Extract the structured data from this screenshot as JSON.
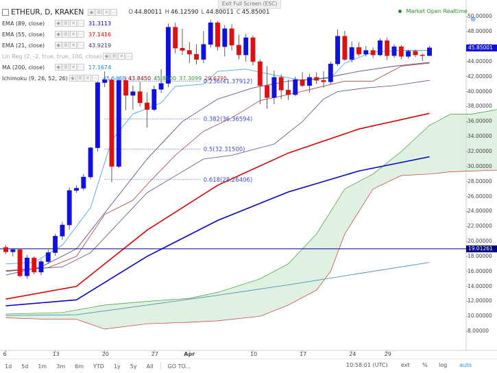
{
  "fullscreen": {
    "exit_label": "Exit Full Screen (ESC)"
  },
  "header": {
    "symbol": "ETHEUR, D, KRAKEN",
    "ohlc_labels": [
      "O",
      "H",
      "L",
      "C"
    ],
    "ohlc_values": [
      "44.80011",
      "46.12590",
      "44.80011",
      "45.85001"
    ],
    "market_status": "Market Open",
    "realtime": "Realtime"
  },
  "indicators": [
    {
      "name": "EMA (89, close)",
      "values": [
        "31.3113"
      ],
      "colors": [
        "#0000cc"
      ]
    },
    {
      "name": "EMA (55, close)",
      "values": [
        "37.1416"
      ],
      "colors": [
        "#dd0000"
      ]
    },
    {
      "name": "EMA (21, close)",
      "values": [
        "43.9219"
      ],
      "colors": [
        "#333366"
      ]
    },
    {
      "name": "Lin Reg (2, -2, true, true, 100, close)",
      "values": [],
      "colors": []
    },
    {
      "name": "MA (200, close)",
      "values": [
        "17.1674"
      ],
      "colors": [
        "#1e8ab4"
      ]
    },
    {
      "name": "Ichimoku (9, 26, 52, 26)",
      "values": [
        "45.5448",
        "43.8450",
        "45.8500",
        "37.3099",
        "29.6795"
      ],
      "colors": [
        "#1e90ff",
        "#8b0000",
        "#228b22",
        "#3a9a3a",
        "#cc3333"
      ]
    }
  ],
  "legend_buttons": [
    "eye",
    "gear",
    "close",
    "more"
  ],
  "timeframes": [
    "1d",
    "5d",
    "1m",
    "3m",
    "6m",
    "YTD",
    "1y",
    "5y",
    "All"
  ],
  "go_to": "GO TO...",
  "bottom_time": "10:58:01 (UTC)",
  "bottom_right": [
    "ext",
    "%",
    "log",
    "auto"
  ],
  "colors": {
    "up": "#1010e0",
    "down": "#e01010",
    "ema89": "#0000cc",
    "ema55": "#dd0000",
    "ema21": "#333366",
    "ma200": "#4a90b8",
    "tenkan": "#1e90ff",
    "kijun": "#8b0000",
    "cloud": "#c8e6c8",
    "fib": "#3c4cc8"
  },
  "chart_data": {
    "type": "candlestick",
    "symbol": "ETHEUR",
    "timeframe": "D",
    "exchange": "KRAKEN",
    "x_tick_labels": [
      "6",
      "13",
      "20",
      "27",
      "Apr",
      "10",
      "17",
      "24",
      "29"
    ],
    "y_tick_labels": [
      "8.00000",
      "10.00000",
      "12.00000",
      "14.00000",
      "16.00000",
      "18.00000",
      "20.00000",
      "22.00000",
      "24.00000",
      "26.00000",
      "28.00000",
      "30.00000",
      "32.00000",
      "34.00000",
      "36.00000",
      "38.00000",
      "40.00000",
      "42.00000",
      "44.00000",
      "46.00000",
      "48.00000",
      "50.00000"
    ],
    "ylim": [
      6,
      51.5
    ],
    "first_date_day": 6,
    "candles": [
      {
        "o": 19.2,
        "h": 19.5,
        "l": 18.3,
        "c": 18.6
      },
      {
        "o": 18.6,
        "h": 19.1,
        "l": 18.0,
        "c": 18.9
      },
      {
        "o": 18.9,
        "h": 18.9,
        "l": 15.2,
        "c": 15.4
      },
      {
        "o": 15.4,
        "h": 18.2,
        "l": 15.0,
        "c": 17.8
      },
      {
        "o": 17.8,
        "h": 18.0,
        "l": 15.6,
        "c": 15.9
      },
      {
        "o": 15.9,
        "h": 17.6,
        "l": 15.5,
        "c": 17.3
      },
      {
        "o": 17.3,
        "h": 18.9,
        "l": 17.0,
        "c": 18.5
      },
      {
        "o": 18.5,
        "h": 21.0,
        "l": 18.1,
        "c": 20.7
      },
      {
        "o": 20.7,
        "h": 22.6,
        "l": 20.2,
        "c": 22.2
      },
      {
        "o": 22.2,
        "h": 27.2,
        "l": 21.6,
        "c": 26.8
      },
      {
        "o": 26.8,
        "h": 27.5,
        "l": 26.5,
        "c": 27.1
      },
      {
        "o": 27.1,
        "h": 29.0,
        "l": 26.8,
        "c": 28.6
      },
      {
        "o": 28.6,
        "h": 32.6,
        "l": 28.3,
        "c": 32.5
      },
      {
        "o": 32.5,
        "h": 41.5,
        "l": 32.0,
        "c": 41.2
      },
      {
        "o": 41.2,
        "h": 42.7,
        "l": 40.6,
        "c": 41.6
      },
      {
        "o": 41.6,
        "h": 41.9,
        "l": 27.9,
        "c": 30.0
      },
      {
        "o": 30.0,
        "h": 42.0,
        "l": 29.8,
        "c": 41.5
      },
      {
        "o": 41.5,
        "h": 42.0,
        "l": 37.5,
        "c": 39.5
      },
      {
        "o": 39.5,
        "h": 40.8,
        "l": 37.6,
        "c": 40.0
      },
      {
        "o": 40.0,
        "h": 41.3,
        "l": 38.0,
        "c": 38.5
      },
      {
        "o": 38.5,
        "h": 39.9,
        "l": 35.2,
        "c": 37.6
      },
      {
        "o": 37.6,
        "h": 40.8,
        "l": 37.4,
        "c": 40.3
      },
      {
        "o": 40.3,
        "h": 43.0,
        "l": 39.8,
        "c": 41.1
      },
      {
        "o": 41.1,
        "h": 49.1,
        "l": 40.6,
        "c": 48.6
      },
      {
        "o": 48.6,
        "h": 49.2,
        "l": 45.1,
        "c": 45.8
      },
      {
        "o": 45.8,
        "h": 48.4,
        "l": 44.9,
        "c": 45.5
      },
      {
        "o": 45.5,
        "h": 46.6,
        "l": 43.8,
        "c": 45.0
      },
      {
        "o": 45.0,
        "h": 46.3,
        "l": 43.6,
        "c": 44.3
      },
      {
        "o": 44.3,
        "h": 48.1,
        "l": 43.8,
        "c": 46.3
      },
      {
        "o": 46.3,
        "h": 49.6,
        "l": 45.9,
        "c": 49.2
      },
      {
        "o": 49.2,
        "h": 49.4,
        "l": 45.5,
        "c": 46.0
      },
      {
        "o": 46.0,
        "h": 48.9,
        "l": 44.7,
        "c": 48.4
      },
      {
        "o": 48.4,
        "h": 49.0,
        "l": 45.5,
        "c": 46.2
      },
      {
        "o": 46.2,
        "h": 47.6,
        "l": 44.3,
        "c": 44.9
      },
      {
        "o": 44.9,
        "h": 47.7,
        "l": 44.0,
        "c": 47.2
      },
      {
        "o": 47.2,
        "h": 47.5,
        "l": 43.5,
        "c": 44.0
      },
      {
        "o": 44.0,
        "h": 44.3,
        "l": 38.3,
        "c": 40.8
      },
      {
        "o": 40.8,
        "h": 43.4,
        "l": 37.7,
        "c": 39.2
      },
      {
        "o": 39.2,
        "h": 42.8,
        "l": 38.3,
        "c": 41.9
      },
      {
        "o": 41.9,
        "h": 42.3,
        "l": 39.0,
        "c": 40.2
      },
      {
        "o": 40.2,
        "h": 41.6,
        "l": 38.9,
        "c": 39.6
      },
      {
        "o": 39.6,
        "h": 42.0,
        "l": 39.4,
        "c": 41.6
      },
      {
        "o": 41.6,
        "h": 42.6,
        "l": 40.6,
        "c": 40.8
      },
      {
        "o": 40.8,
        "h": 42.4,
        "l": 39.9,
        "c": 41.9
      },
      {
        "o": 41.9,
        "h": 42.6,
        "l": 41.0,
        "c": 41.5
      },
      {
        "o": 41.5,
        "h": 42.7,
        "l": 40.5,
        "c": 41.3
      },
      {
        "o": 41.3,
        "h": 44.0,
        "l": 41.0,
        "c": 43.7
      },
      {
        "o": 43.7,
        "h": 48.3,
        "l": 43.4,
        "c": 47.4
      },
      {
        "o": 47.4,
        "h": 48.1,
        "l": 44.1,
        "c": 44.3
      },
      {
        "o": 44.3,
        "h": 46.7,
        "l": 43.9,
        "c": 45.9
      },
      {
        "o": 45.9,
        "h": 46.6,
        "l": 44.7,
        "c": 45.0
      },
      {
        "o": 45.0,
        "h": 46.1,
        "l": 44.7,
        "c": 45.5
      },
      {
        "o": 45.5,
        "h": 45.9,
        "l": 44.5,
        "c": 44.9
      },
      {
        "o": 44.9,
        "h": 47.1,
        "l": 44.7,
        "c": 46.8
      },
      {
        "o": 46.8,
        "h": 47.2,
        "l": 44.2,
        "c": 44.8
      },
      {
        "o": 44.8,
        "h": 46.3,
        "l": 44.5,
        "c": 46.0
      },
      {
        "o": 46.0,
        "h": 46.2,
        "l": 44.3,
        "c": 44.7
      },
      {
        "o": 44.7,
        "h": 45.6,
        "l": 44.4,
        "c": 45.4
      },
      {
        "o": 45.4,
        "h": 45.6,
        "l": 44.6,
        "c": 44.9
      },
      {
        "o": 44.9,
        "h": 45.1,
        "l": 44.1,
        "c": 44.8
      },
      {
        "o": 44.8,
        "h": 46.1,
        "l": 44.8,
        "c": 45.85
      }
    ],
    "fib_levels": [
      {
        "label": "0.236(41.37912)",
        "price": 41.37912
      },
      {
        "label": "0.382(36.36594)",
        "price": 36.36594
      },
      {
        "label": "0.5(32.31500)",
        "price": 32.315
      },
      {
        "label": "0.618(28.26406)",
        "price": 28.26406
      }
    ],
    "horizontal_line": {
      "price": 19.01261,
      "label": "19.01261"
    },
    "last_price": {
      "price": 45.85001,
      "label": "45.85001"
    },
    "series": [
      {
        "name": "EMA (89, close)",
        "points": [
          [
            0,
            11.4
          ],
          [
            10,
            12.2
          ],
          [
            20,
            18.0
          ],
          [
            30,
            22.8
          ],
          [
            40,
            26.6
          ],
          [
            50,
            29.4
          ],
          [
            60,
            31.3
          ]
        ]
      },
      {
        "name": "EMA (55, close)",
        "points": [
          [
            0,
            12.3
          ],
          [
            10,
            14.0
          ],
          [
            20,
            21.5
          ],
          [
            30,
            27.5
          ],
          [
            40,
            31.8
          ],
          [
            50,
            35.0
          ],
          [
            60,
            37.1
          ]
        ]
      },
      {
        "name": "EMA (21, close)",
        "points": [
          [
            0,
            15.5
          ],
          [
            5,
            16.6
          ],
          [
            10,
            19.0
          ],
          [
            15,
            25.0
          ],
          [
            20,
            31.0
          ],
          [
            25,
            36.0
          ],
          [
            30,
            39.0
          ],
          [
            35,
            40.5
          ],
          [
            40,
            41.4
          ],
          [
            45,
            41.8
          ],
          [
            50,
            42.7
          ],
          [
            55,
            43.4
          ],
          [
            60,
            43.9
          ]
        ]
      },
      {
        "name": "MA (200, close)",
        "points": [
          [
            0,
            10.1
          ],
          [
            10,
            10.2
          ],
          [
            20,
            11.5
          ],
          [
            30,
            12.8
          ],
          [
            40,
            14.2
          ],
          [
            50,
            15.7
          ],
          [
            60,
            17.2
          ]
        ]
      },
      {
        "name": "Tenkan",
        "points": [
          [
            0,
            17.0
          ],
          [
            4,
            17.2
          ],
          [
            8,
            19.5
          ],
          [
            12,
            24.5
          ],
          [
            15,
            33.5
          ],
          [
            18,
            37.0
          ],
          [
            22,
            38.5
          ],
          [
            24,
            40.7
          ],
          [
            28,
            41.0
          ],
          [
            30,
            42.7
          ],
          [
            34,
            43.0
          ],
          [
            38,
            42.2
          ],
          [
            42,
            41.5
          ],
          [
            46,
            41.8
          ],
          [
            48,
            43.8
          ],
          [
            52,
            45.3
          ],
          [
            56,
            45.5
          ],
          [
            60,
            45.5
          ]
        ]
      },
      {
        "name": "Kijun",
        "points": [
          [
            0,
            16.0
          ],
          [
            6,
            16.5
          ],
          [
            10,
            18.0
          ],
          [
            14,
            23.6
          ],
          [
            18,
            25.5
          ],
          [
            20,
            27.6
          ],
          [
            24,
            31.5
          ],
          [
            28,
            34.7
          ],
          [
            32,
            36.5
          ],
          [
            36,
            38.8
          ],
          [
            40,
            39.6
          ],
          [
            44,
            40.5
          ],
          [
            48,
            41.4
          ],
          [
            52,
            41.4
          ],
          [
            56,
            43.4
          ],
          [
            60,
            43.8
          ]
        ]
      },
      {
        "name": "Lagging",
        "points": [
          [
            0,
            16.1
          ],
          [
            8,
            16.6
          ],
          [
            12,
            18.5
          ],
          [
            20,
            26.5
          ],
          [
            28,
            31.0
          ],
          [
            32,
            31.5
          ],
          [
            38,
            33.0
          ],
          [
            42,
            36.0
          ],
          [
            45,
            39.0
          ],
          [
            47,
            40.0
          ],
          [
            51,
            40.5
          ],
          [
            55,
            40.8
          ],
          [
            60,
            41.5
          ]
        ]
      }
    ],
    "cloud": {
      "top": [
        [
          0,
          10.3
        ],
        [
          8,
          10.5
        ],
        [
          14,
          11.5
        ],
        [
          20,
          12.0
        ],
        [
          26,
          12.4
        ],
        [
          30,
          13.2
        ],
        [
          36,
          15.0
        ],
        [
          40,
          17.0
        ],
        [
          44,
          21.0
        ],
        [
          46,
          24.0
        ],
        [
          48,
          27.0
        ],
        [
          52,
          29.0
        ],
        [
          56,
          32.0
        ],
        [
          60,
          35.5
        ],
        [
          63,
          37.0
        ],
        [
          66,
          37.0
        ],
        [
          69,
          37.5
        ],
        [
          71,
          37.9
        ],
        [
          73,
          38.5
        ],
        [
          74,
          39.5
        ],
        [
          76,
          38.2
        ],
        [
          78,
          38.5
        ]
      ],
      "bottom": [
        [
          0,
          9.8
        ],
        [
          6,
          9.6
        ],
        [
          10,
          9.6
        ],
        [
          14,
          8.3
        ],
        [
          20,
          9.0
        ],
        [
          26,
          9.2
        ],
        [
          30,
          9.4
        ],
        [
          36,
          10.0
        ],
        [
          40,
          11.5
        ],
        [
          44,
          13.5
        ],
        [
          46,
          16.0
        ],
        [
          48,
          21.0
        ],
        [
          52,
          27.0
        ],
        [
          56,
          28.8
        ],
        [
          60,
          29.0
        ],
        [
          63,
          29.3
        ],
        [
          66,
          29.4
        ],
        [
          69,
          29.5
        ],
        [
          72,
          29.6
        ],
        [
          75,
          29.8
        ],
        [
          78,
          30.0
        ]
      ]
    }
  }
}
